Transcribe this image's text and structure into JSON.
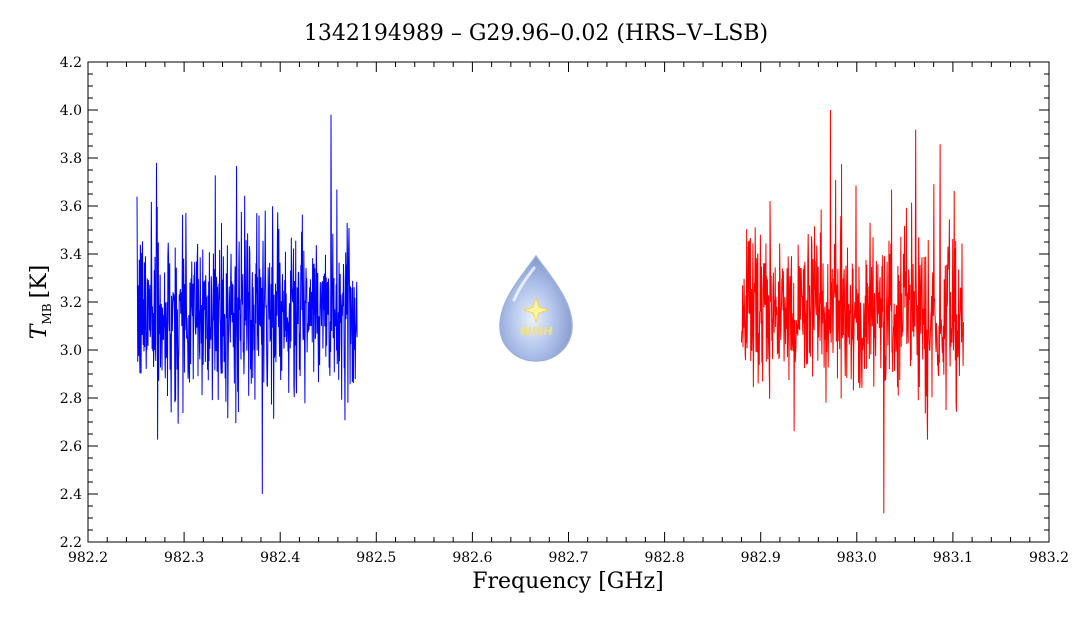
{
  "chart_data": {
    "type": "line",
    "title": "1342194989 – G29.96–0.02 (HRS–V–LSB)",
    "xlabel": "Frequency [GHz]",
    "ylabel": {
      "symbol": "T",
      "subscript": "MB",
      "unit": "[K]"
    },
    "xlim": [
      982.2,
      983.2
    ],
    "ylim": [
      2.2,
      4.2
    ],
    "x_ticks": [
      "982.2",
      "982.3",
      "982.4",
      "982.5",
      "982.6",
      "982.7",
      "982.8",
      "982.9",
      "983.0",
      "983.1",
      "983.2"
    ],
    "y_ticks": [
      "2.2",
      "2.4",
      "2.6",
      "2.8",
      "3.0",
      "3.2",
      "3.4",
      "3.6",
      "3.8",
      "4.0",
      "4.2"
    ],
    "grid": false,
    "series": [
      {
        "color": "#0000ff",
        "x_range": [
          982.251,
          982.48
        ],
        "mean": 3.15,
        "noise_sigma": 0.22,
        "y_min": 2.4,
        "y_max": 3.98,
        "points": 600
      },
      {
        "color": "#ff0000",
        "x_range": [
          982.88,
          983.111
        ],
        "mean": 3.15,
        "noise_sigma": 0.22,
        "y_min": 2.32,
        "y_max": 4.0,
        "points": 600
      }
    ],
    "logo": {
      "name": "wish-droplet-logo",
      "text": "WISH"
    }
  }
}
